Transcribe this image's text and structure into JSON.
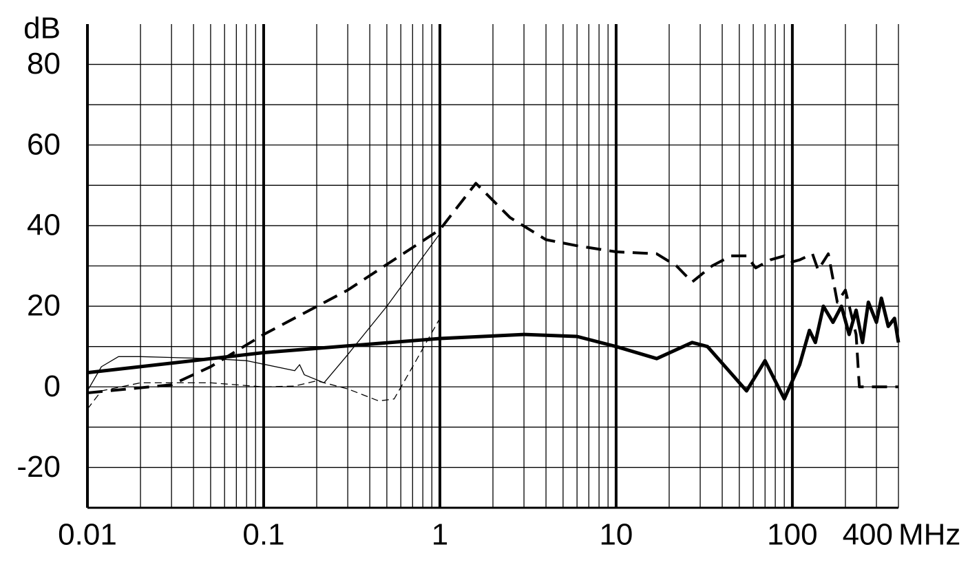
{
  "chart_data": {
    "type": "line",
    "x_log": true,
    "xlim": [
      0.01,
      400
    ],
    "xticks": [
      0.01,
      0.1,
      1,
      10,
      100,
      400
    ],
    "xminor_ticks": [
      0.02,
      0.03,
      0.04,
      0.05,
      0.06,
      0.07,
      0.08,
      0.09,
      0.2,
      0.3,
      0.4,
      0.5,
      0.6,
      0.7,
      0.8,
      0.9,
      2,
      3,
      4,
      5,
      6,
      7,
      8,
      9,
      20,
      30,
      40,
      50,
      60,
      70,
      80,
      90,
      200,
      300
    ],
    "x_unit": "MHz",
    "ylim": [
      -30,
      90
    ],
    "yticks": [
      -20,
      0,
      20,
      40,
      60,
      80
    ],
    "yminor_ticks": [
      -10,
      10,
      30,
      50,
      70
    ],
    "y_unit": "dB",
    "grid": true,
    "series": [
      {
        "color": "#000000",
        "width": 5,
        "dash": "none",
        "x": [
          0.01,
          0.1,
          1,
          3,
          6,
          10,
          17,
          27,
          33,
          55,
          70,
          90,
          110,
          125,
          135,
          150,
          170,
          190,
          210,
          230,
          250,
          270,
          300,
          320,
          350,
          380,
          400
        ],
        "values": [
          3.5,
          8.5,
          12,
          13,
          12.5,
          10,
          7,
          11,
          10,
          -1,
          6.5,
          -3,
          5.5,
          14,
          11,
          20,
          16,
          20,
          13,
          19,
          11,
          21,
          16,
          22,
          15,
          17,
          11
        ]
      },
      {
        "color": "#000000",
        "width": 4,
        "dash": "22 12",
        "x": [
          0.01,
          0.03,
          0.05,
          0.1,
          0.3,
          1,
          1.6,
          2.5,
          4,
          6,
          10,
          17,
          22,
          27,
          35,
          45,
          55,
          62,
          75,
          90,
          100,
          110,
          130,
          140,
          160,
          180,
          200,
          230,
          240,
          280,
          400
        ],
        "values": [
          -1.5,
          0.5,
          5,
          13,
          24,
          39,
          50.5,
          42,
          36.5,
          35,
          33.5,
          33,
          30,
          26,
          30,
          32.5,
          32.5,
          29.5,
          31.5,
          32.5,
          31,
          31.5,
          33,
          29,
          33,
          21,
          24,
          13,
          0,
          0,
          0
        ]
      },
      {
        "color": "#000000",
        "width": 1.3,
        "dash": "none",
        "x": [
          0.01,
          0.012,
          0.015,
          0.02,
          0.05,
          0.08,
          0.15,
          0.16,
          0.17,
          0.22,
          0.3,
          0.5,
          1
        ],
        "values": [
          -1,
          5,
          7.5,
          7.5,
          7,
          6.5,
          4,
          5.5,
          3,
          1,
          8,
          20,
          38
        ]
      },
      {
        "color": "#000000",
        "width": 1.3,
        "dash": "10 6",
        "x": [
          0.01,
          0.012,
          0.02,
          0.05,
          0.1,
          0.15,
          0.2,
          0.3,
          0.45,
          0.55,
          0.7,
          1
        ],
        "values": [
          -5.5,
          -1,
          1,
          1,
          0,
          0.2,
          1.5,
          -0.5,
          -3.5,
          -3,
          5,
          17
        ]
      }
    ]
  }
}
